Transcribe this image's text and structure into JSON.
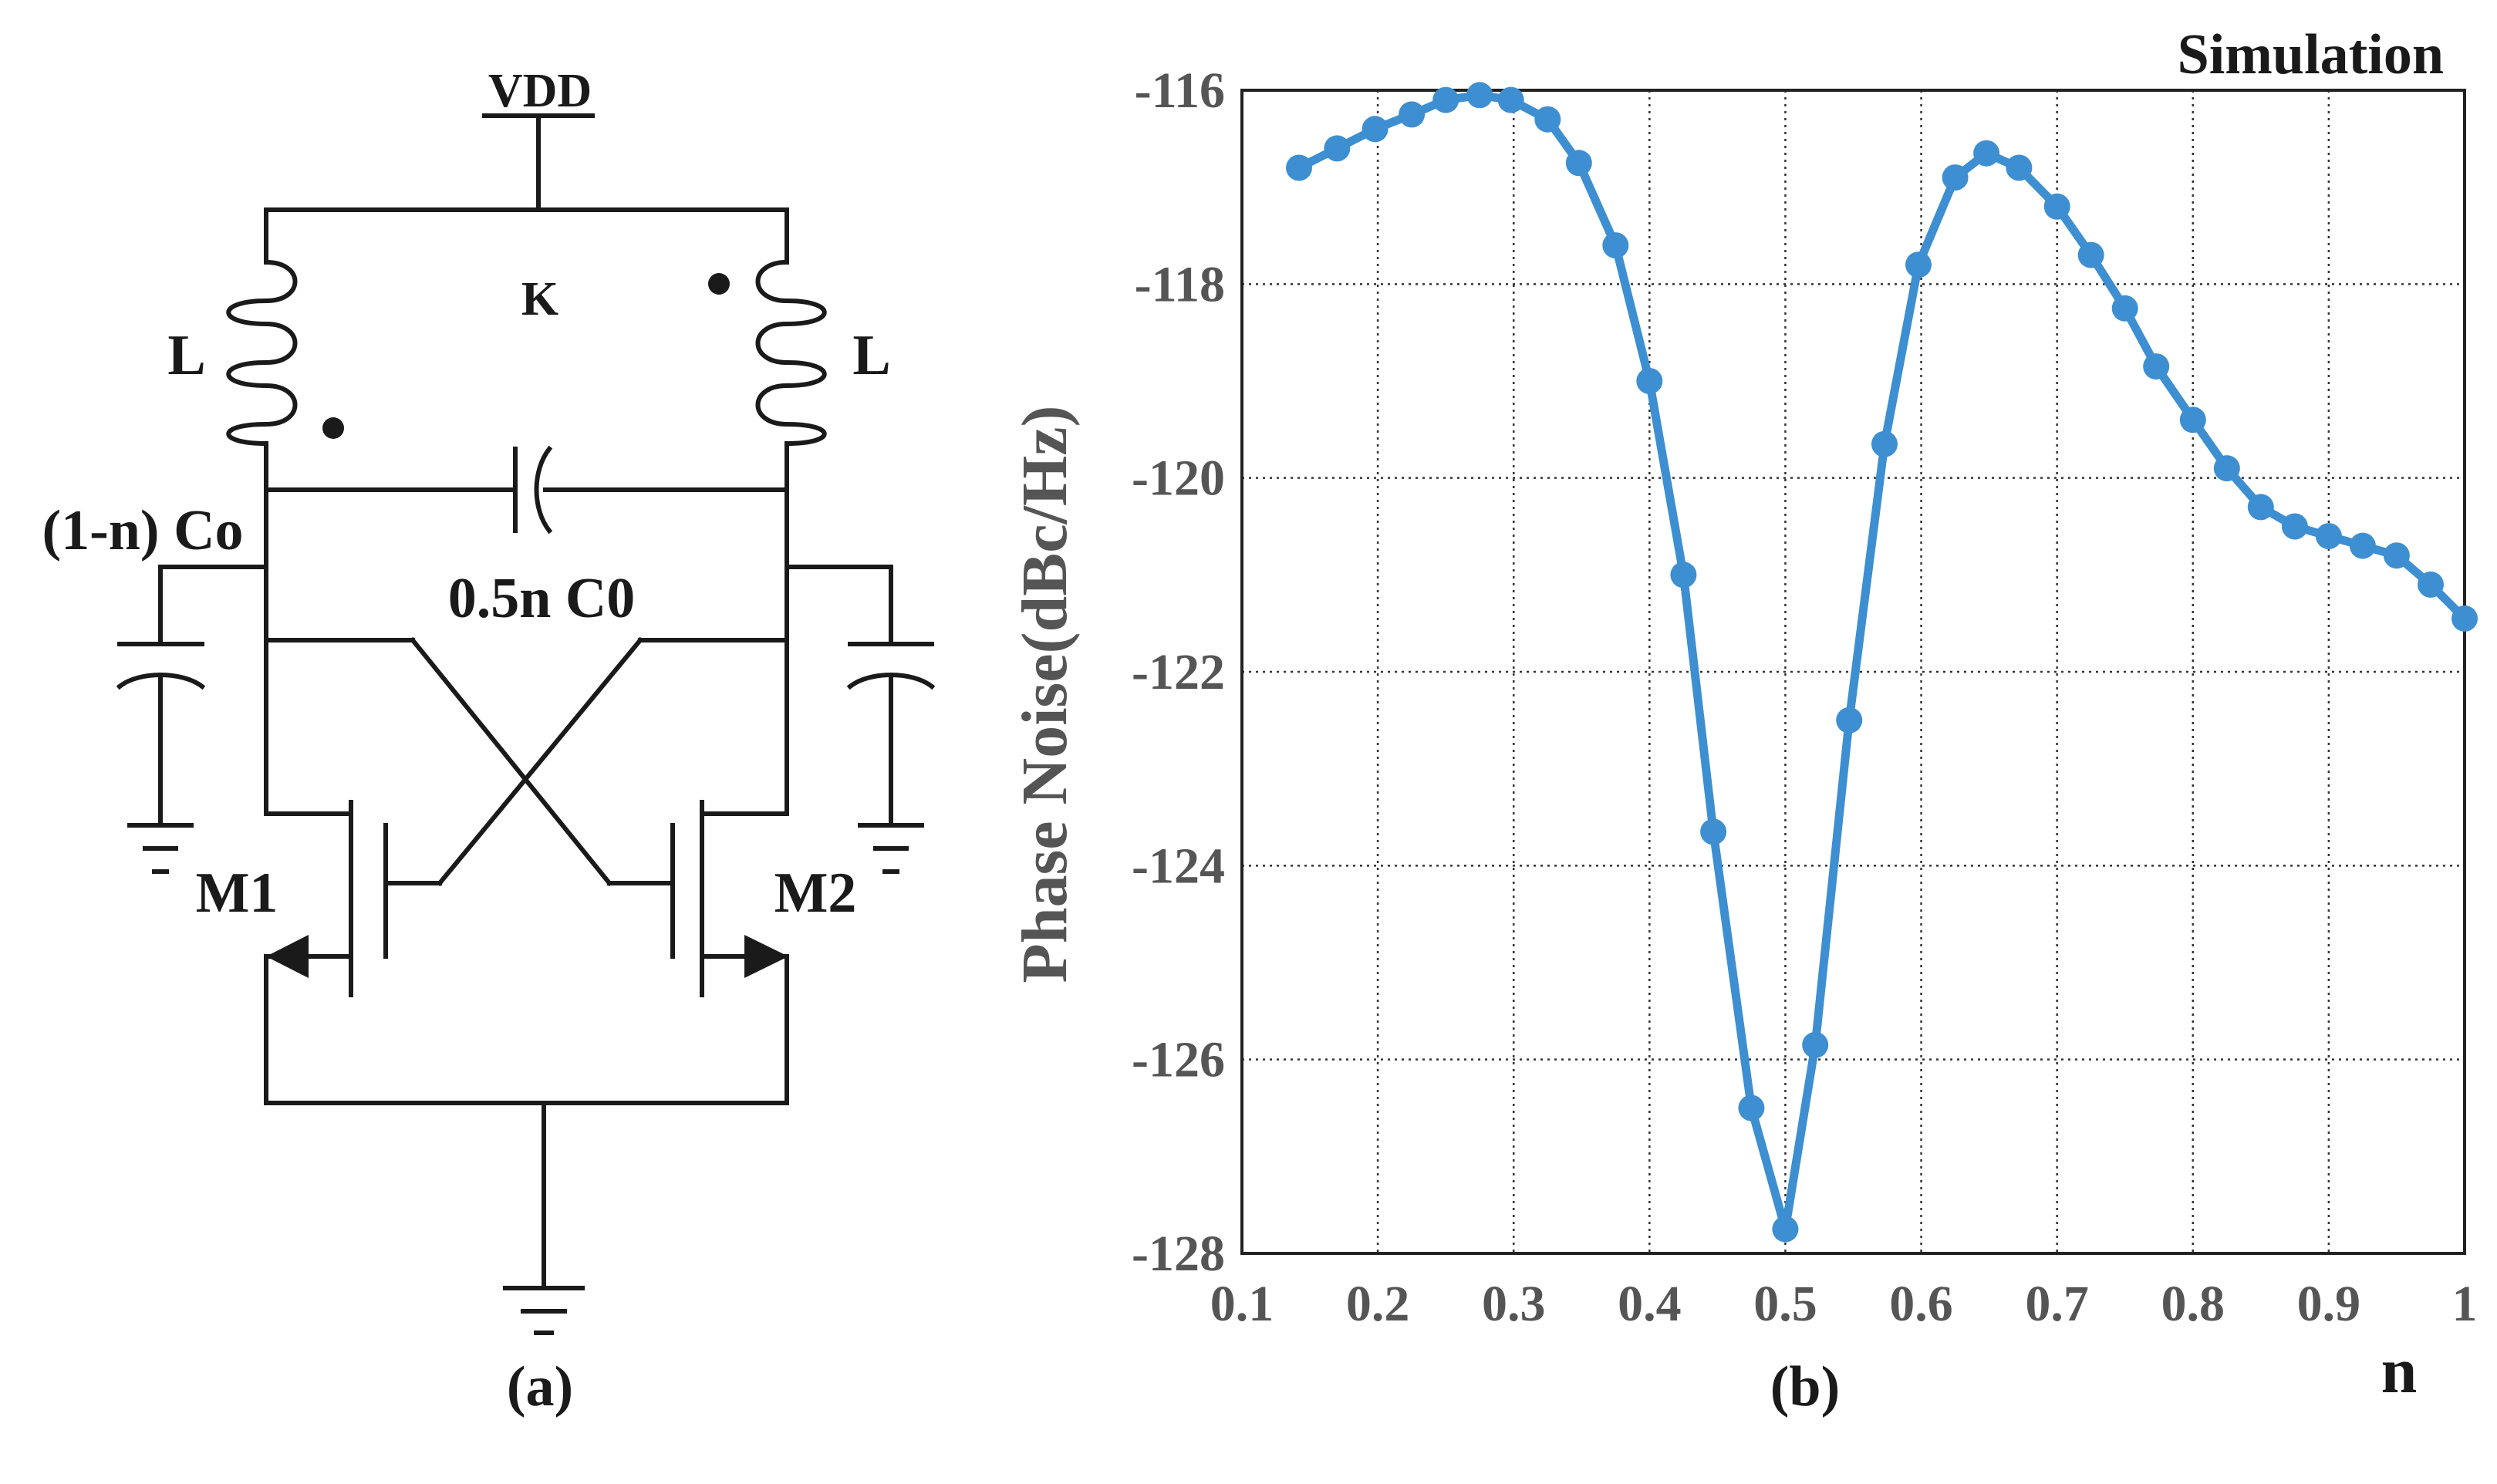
{
  "circuit": {
    "supply_label": "VDD",
    "coupling_label": "K",
    "inductor_left_label": "L",
    "inductor_right_label": "L",
    "tail_cap_label": "(1-n) Co",
    "cross_cap_label": "0.5n C0",
    "transistor_left_label": "M1",
    "transistor_right_label": "M2",
    "caption": "(a)"
  },
  "plot": {
    "caption": "(b)",
    "line_color": "#3d8fd1"
  },
  "chart_data": {
    "type": "line",
    "title": "Simulation",
    "xlabel": "n",
    "ylabel": "Phase Noise(dBc/Hz)",
    "xlim": [
      0.1,
      1
    ],
    "ylim": [
      -128,
      -116
    ],
    "xticks": [
      "0.1",
      "0.2",
      "0.3",
      "0.4",
      "0.5",
      "0.6",
      "0.7",
      "0.8",
      "0.9",
      "1"
    ],
    "yticks": [
      "-116",
      "-118",
      "-120",
      "-122",
      "-124",
      "-126",
      "-128"
    ],
    "grid": true,
    "series": [
      {
        "name": "Phase Noise",
        "x": [
          0.142,
          0.17,
          0.198,
          0.225,
          0.25,
          0.275,
          0.298,
          0.325,
          0.348,
          0.375,
          0.4,
          0.425,
          0.447,
          0.475,
          0.5,
          0.522,
          0.547,
          0.573,
          0.598,
          0.625,
          0.648,
          0.672,
          0.7,
          0.725,
          0.75,
          0.773,
          0.8,
          0.825,
          0.85,
          0.875,
          0.9,
          0.925,
          0.95,
          0.975,
          1.0
        ],
        "y": [
          -116.8,
          -116.6,
          -116.4,
          -116.25,
          -116.1,
          -116.05,
          -116.1,
          -116.3,
          -116.75,
          -117.6,
          -119.0,
          -121.0,
          -123.65,
          -126.5,
          -127.75,
          -125.85,
          -122.5,
          -119.65,
          -117.8,
          -116.9,
          -116.65,
          -116.8,
          -117.2,
          -117.7,
          -118.25,
          -118.85,
          -119.4,
          -119.9,
          -120.3,
          -120.5,
          -120.6,
          -120.7,
          -120.8,
          -121.1,
          -121.45
        ]
      }
    ]
  }
}
